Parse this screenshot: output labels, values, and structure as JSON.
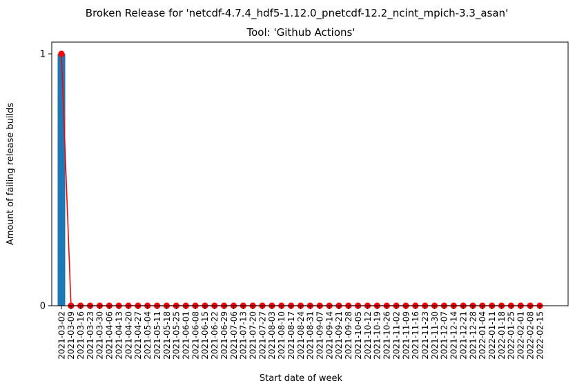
{
  "chart_data": {
    "type": "bar",
    "suptitle": "Broken Release for 'netcdf-4.7.4_hdf5-1.12.0_pnetcdf-12.2_ncint_mpich-3.3_asan'",
    "title": "Tool: 'Github Actions'",
    "xlabel": "Start date of week",
    "ylabel": "Amount of failing release builds",
    "ylim": [
      0,
      1
    ],
    "yticks": [
      0,
      1
    ],
    "grid": false,
    "bar_color": "#1f77b4",
    "line_color": "#ff0000",
    "categories": [
      "2021-03-02",
      "2021-03-09",
      "2021-03-16",
      "2021-03-23",
      "2021-03-30",
      "2021-04-06",
      "2021-04-13",
      "2021-04-20",
      "2021-04-27",
      "2021-05-04",
      "2021-05-11",
      "2021-05-18",
      "2021-05-25",
      "2021-06-01",
      "2021-06-08",
      "2021-06-15",
      "2021-06-22",
      "2021-06-29",
      "2021-07-06",
      "2021-07-13",
      "2021-07-20",
      "2021-07-27",
      "2021-08-03",
      "2021-08-10",
      "2021-08-17",
      "2021-08-24",
      "2021-08-31",
      "2021-09-07",
      "2021-09-14",
      "2021-09-21",
      "2021-09-28",
      "2021-10-05",
      "2021-10-12",
      "2021-10-19",
      "2021-10-26",
      "2021-11-02",
      "2021-11-09",
      "2021-11-16",
      "2021-11-23",
      "2021-11-30",
      "2021-12-07",
      "2021-12-14",
      "2021-12-21",
      "2021-12-28",
      "2022-01-04",
      "2022-01-11",
      "2022-01-18",
      "2022-01-25",
      "2022-02-01",
      "2022-02-08",
      "2022-02-15"
    ],
    "series": [
      {
        "type": "bar",
        "values": [
          1,
          0,
          0,
          0,
          0,
          0,
          0,
          0,
          0,
          0,
          0,
          0,
          0,
          0,
          0,
          0,
          0,
          0,
          0,
          0,
          0,
          0,
          0,
          0,
          0,
          0,
          0,
          0,
          0,
          0,
          0,
          0,
          0,
          0,
          0,
          0,
          0,
          0,
          0,
          0,
          0,
          0,
          0,
          0,
          0,
          0,
          0,
          0,
          0,
          0,
          0
        ]
      },
      {
        "type": "line",
        "marker": "circle",
        "values": [
          1,
          0,
          0,
          0,
          0,
          0,
          0,
          0,
          0,
          0,
          0,
          0,
          0,
          0,
          0,
          0,
          0,
          0,
          0,
          0,
          0,
          0,
          0,
          0,
          0,
          0,
          0,
          0,
          0,
          0,
          0,
          0,
          0,
          0,
          0,
          0,
          0,
          0,
          0,
          0,
          0,
          0,
          0,
          0,
          0,
          0,
          0,
          0,
          0,
          0,
          0
        ]
      }
    ]
  }
}
